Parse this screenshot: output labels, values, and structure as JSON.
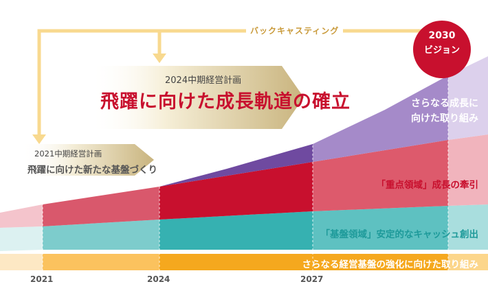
{
  "backcasting": {
    "label": "バックキャスティング"
  },
  "vision": {
    "year": "2030",
    "label": "ビジョン"
  },
  "plan_2024": {
    "label": "2024中期経営計画",
    "title": "飛躍に向けた成長軌道の確立"
  },
  "plan_2021": {
    "label": "2021中期経営計画",
    "title": "飛躍に向けた新たな基盤づくり"
  },
  "layers": {
    "growth": {
      "line1": "さらなる成長に",
      "line2": "向けた取り組み"
    },
    "focus": {
      "label": "「重点領域」成長の牽引"
    },
    "foundation": {
      "label": "「基盤領域」安定的なキャッシュ創出"
    },
    "strengthening": {
      "label": "さらなる経営基盤の強化に向けた取り組み"
    }
  },
  "years": [
    "2021",
    "2024",
    "2027"
  ],
  "colors": {
    "arrow": "#f8d98f",
    "vision_circle": "#c8102e",
    "growth": "#8a6bb8",
    "focus": "#c8102e",
    "foundation": "#36b1b1",
    "strengthening": "#f5a81e"
  }
}
